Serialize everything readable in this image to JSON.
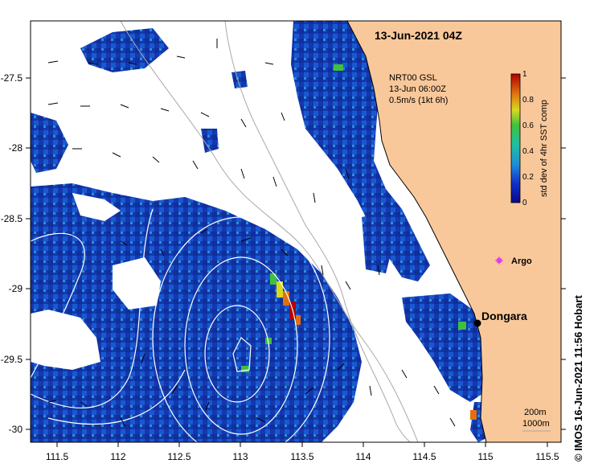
{
  "title": "13-Jun-2021 04Z",
  "current_info": {
    "line1": "NRT00 GSL",
    "line2": "13-Jun 06:00Z",
    "line3": "0.5m/s (1kt 6h)"
  },
  "colorbar": {
    "label": "std dev of 4hr SST comp",
    "ticks": [
      "0",
      "0.2",
      "0.4",
      "0.6",
      "0.8",
      "1"
    ]
  },
  "places": {
    "dongara": "Dongara",
    "argo": "Argo"
  },
  "contour_legend": {
    "line1": "200m",
    "line2": "1000m"
  },
  "credit": "© IMOS 16-Jun-2021 11:56 Hobart",
  "x_ticks": [
    "111.5",
    "112",
    "112.5",
    "113",
    "113.5",
    "114",
    "114.5",
    "115",
    "115.5"
  ],
  "y_ticks": [
    "-27.5",
    "-28",
    "-28.5",
    "-29",
    "-29.5",
    "-30"
  ],
  "colors": {
    "land": "#f9c89a",
    "argo": "#e040e0",
    "contour": "#ffffff",
    "bathymetry": "#a8a8a8"
  }
}
